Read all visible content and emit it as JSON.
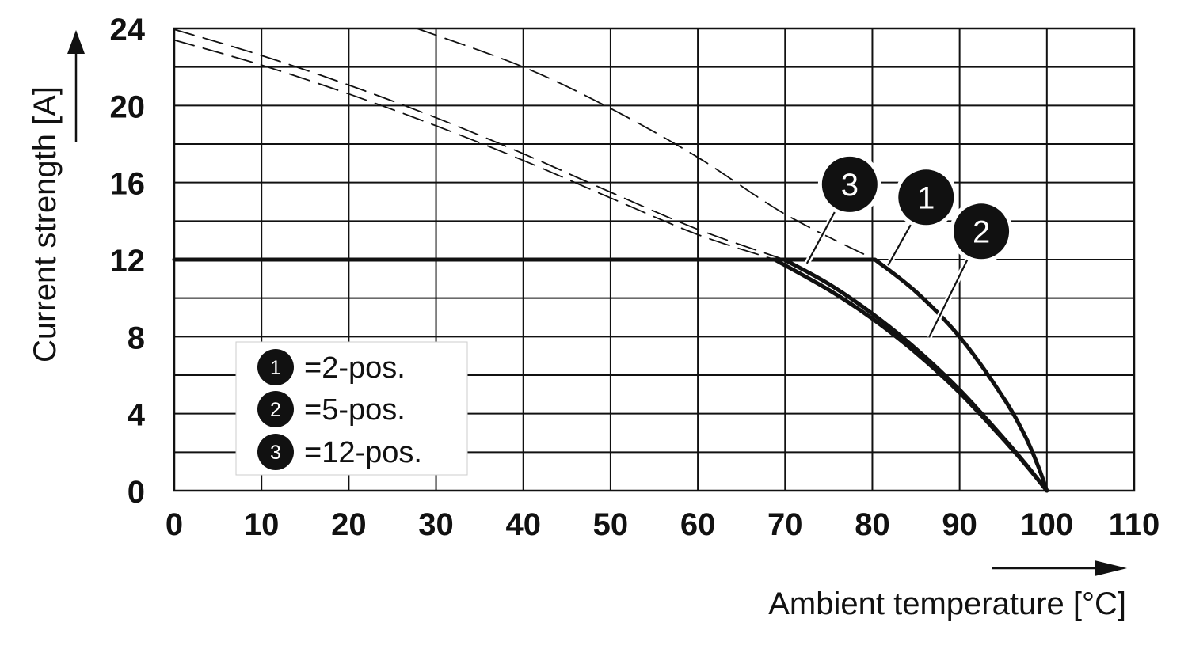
{
  "chart_data": {
    "type": "line",
    "xlabel": "Ambient temperature [°C]",
    "ylabel": "Current strength [A]",
    "xlim": [
      0,
      110
    ],
    "ylim": [
      0,
      24
    ],
    "x_ticks": [
      0,
      10,
      20,
      30,
      40,
      50,
      60,
      70,
      80,
      90,
      100,
      110
    ],
    "y_ticks": [
      0,
      4,
      8,
      12,
      16,
      20,
      24
    ],
    "x_grid_step": 10,
    "y_grid_step": 2,
    "grid": true,
    "legend_position": "bottom-left",
    "legend": [
      {
        "badge": "1",
        "label": "=2-pos."
      },
      {
        "badge": "2",
        "label": "=5-pos."
      },
      {
        "badge": "3",
        "label": "=12-pos."
      }
    ],
    "series": [
      {
        "badge": "1",
        "style": "solid",
        "points": [
          [
            0,
            12
          ],
          [
            80.3,
            12
          ],
          [
            85,
            10.33
          ],
          [
            90,
            7.99
          ],
          [
            95,
            4.84
          ],
          [
            97.5,
            2.84
          ],
          [
            99,
            1.27
          ],
          [
            100,
            0
          ]
        ]
      },
      {
        "badge": "2",
        "style": "solid",
        "points": [
          [
            0,
            12
          ],
          [
            69.9,
            12
          ],
          [
            75,
            10.74
          ],
          [
            80,
            9.19
          ],
          [
            85,
            7.37
          ],
          [
            90,
            5.24
          ],
          [
            95,
            2.75
          ],
          [
            97.5,
            1.42
          ],
          [
            100,
            0
          ]
        ]
      },
      {
        "badge": "3",
        "style": "solid",
        "points": [
          [
            0,
            12
          ],
          [
            68.8,
            12
          ],
          [
            75,
            10.43
          ],
          [
            80,
            8.93
          ],
          [
            85,
            7.16
          ],
          [
            90,
            5.09
          ],
          [
            95,
            2.67
          ],
          [
            97.5,
            1.38
          ],
          [
            100,
            0
          ]
        ]
      },
      {
        "badge": "1",
        "style": "dashed",
        "points": [
          [
            27.8,
            24
          ],
          [
            40,
            22.0
          ],
          [
            50,
            19.85
          ],
          [
            60,
            17.31
          ],
          [
            70,
            14.36
          ],
          [
            80.3,
            12
          ]
        ]
      },
      {
        "badge": "2",
        "style": "dashed",
        "points": [
          [
            0,
            23.95
          ],
          [
            10,
            22.6
          ],
          [
            20,
            21.06
          ],
          [
            30,
            19.37
          ],
          [
            40,
            17.5
          ],
          [
            50,
            15.5
          ],
          [
            60,
            13.57
          ],
          [
            69.9,
            12
          ]
        ]
      },
      {
        "badge": "3",
        "style": "dashed",
        "points": [
          [
            0,
            23.4
          ],
          [
            10,
            22.1
          ],
          [
            20,
            20.6
          ],
          [
            30,
            18.95
          ],
          [
            40,
            17.15
          ],
          [
            50,
            15.2
          ],
          [
            60,
            13.3
          ],
          [
            68.8,
            12
          ]
        ]
      }
    ],
    "callouts": [
      {
        "badge": "3",
        "x": 72.5,
        "y": 11.8
      },
      {
        "badge": "1",
        "x": 81.8,
        "y": 11.7
      },
      {
        "badge": "2",
        "x": 86.5,
        "y": 7.96
      }
    ]
  }
}
